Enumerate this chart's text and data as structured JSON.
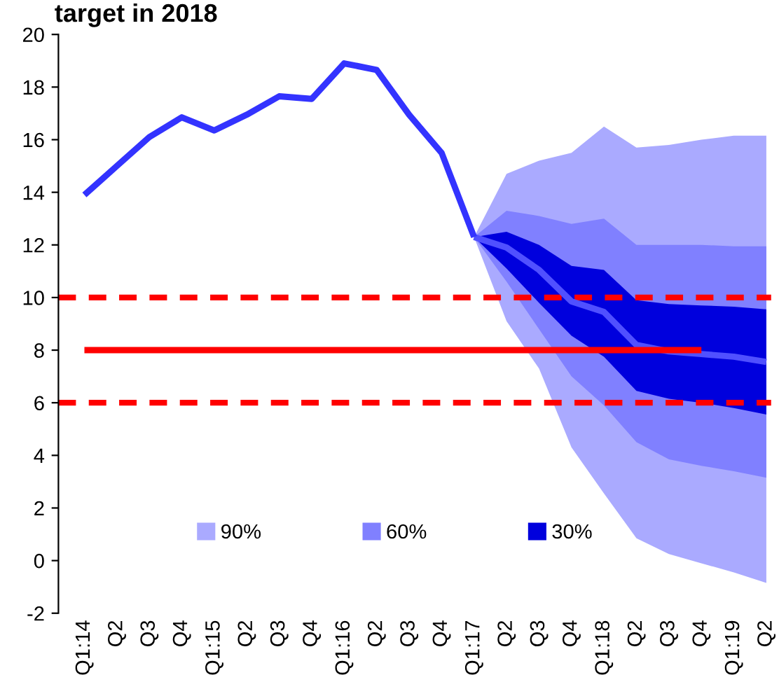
{
  "chart_data": {
    "type": "line",
    "title": "target in 2018",
    "categories": [
      "Q1:14",
      "Q2",
      "Q3",
      "Q4",
      "Q1:15",
      "Q2",
      "Q3",
      "Q4",
      "Q1:16",
      "Q2",
      "Q3",
      "Q4",
      "Q1:17",
      "Q2",
      "Q3",
      "Q4",
      "Q1:18",
      "Q2",
      "Q3",
      "Q4",
      "Q1:19",
      "Q2"
    ],
    "series": [
      {
        "name": "90%",
        "color": "#aaaaff",
        "values": [
          null,
          null,
          null,
          null,
          null,
          null,
          null,
          null,
          null,
          null,
          null,
          null,
          null,
          null,
          null,
          null,
          null,
          null,
          null,
          null,
          null,
          null
        ],
        "upper": [
          null,
          null,
          null,
          null,
          null,
          null,
          null,
          null,
          null,
          null,
          null,
          null,
          12.3,
          14.7,
          15.2,
          15.5,
          16.5,
          15.7,
          15.8,
          16.0,
          16.15,
          16.15
        ],
        "lower": [
          null,
          null,
          null,
          null,
          null,
          null,
          null,
          null,
          null,
          null,
          null,
          null,
          12.3,
          9.1,
          7.3,
          4.3,
          2.55,
          0.85,
          0.25,
          -0.1,
          -0.45,
          -0.85
        ]
      },
      {
        "name": "60%",
        "color": "#8080ff",
        "values": [
          null,
          null,
          null,
          null,
          null,
          null,
          null,
          null,
          null,
          null,
          null,
          null,
          null,
          null,
          null,
          null,
          null,
          null,
          null,
          null,
          null,
          null
        ],
        "upper": [
          null,
          null,
          null,
          null,
          null,
          null,
          null,
          null,
          null,
          null,
          null,
          null,
          12.3,
          13.3,
          13.1,
          12.8,
          13.0,
          12.0,
          12.0,
          12.0,
          11.95,
          11.95
        ],
        "lower": [
          null,
          null,
          null,
          null,
          null,
          null,
          null,
          null,
          null,
          null,
          null,
          null,
          12.3,
          10.6,
          8.8,
          7.0,
          5.9,
          4.5,
          3.85,
          3.6,
          3.4,
          3.15
        ]
      },
      {
        "name": "30%",
        "color": "#0000dd",
        "values": [
          null,
          null,
          null,
          null,
          null,
          null,
          null,
          null,
          null,
          null,
          null,
          null,
          null,
          null,
          null,
          null,
          null,
          null,
          null,
          null,
          null,
          null
        ],
        "upper": [
          null,
          null,
          null,
          null,
          null,
          null,
          null,
          null,
          null,
          null,
          null,
          null,
          12.3,
          12.5,
          12.0,
          11.2,
          11.05,
          9.9,
          9.75,
          9.7,
          9.65,
          9.55
        ],
        "lower": [
          null,
          null,
          null,
          null,
          null,
          null,
          null,
          null,
          null,
          null,
          null,
          null,
          12.3,
          11.1,
          9.8,
          8.55,
          7.75,
          6.45,
          6.15,
          6.0,
          5.8,
          5.55
        ]
      },
      {
        "color": "#5050ff",
        "values": [
          null,
          null,
          null,
          null,
          null,
          null,
          null,
          null,
          null,
          null,
          null,
          null,
          12.3,
          11.9,
          11.05,
          9.85,
          9.45,
          8.2,
          7.95,
          7.85,
          7.75,
          7.55
        ]
      },
      {
        "color": "#ff0000",
        "values": [
          8,
          8,
          8,
          8,
          8,
          8,
          8,
          8,
          8,
          8,
          8,
          8,
          8,
          8,
          8,
          8,
          8,
          8,
          8,
          8,
          null,
          null
        ]
      },
      {
        "color": "#3333ff",
        "values": [
          13.9,
          15.0,
          16.1,
          16.85,
          16.35,
          16.95,
          17.65,
          17.55,
          18.9,
          18.65,
          16.95,
          15.5,
          12.3,
          null,
          null,
          null,
          null,
          null,
          null,
          null,
          null,
          null
        ]
      }
    ],
    "ref_lines": [
      {
        "axis": "y",
        "value": 10,
        "color": "#ff0000",
        "line_style": "dashed"
      },
      {
        "axis": "y",
        "value": 6,
        "color": "#ff0000",
        "line_style": "dashed"
      }
    ],
    "ylim": [
      -2,
      20
    ],
    "yticks": [
      -2,
      0,
      2,
      4,
      6,
      8,
      10,
      12,
      14,
      16,
      18,
      20
    ],
    "grid": false,
    "legend": "bottom",
    "line_style": "solid",
    "marker": "none"
  }
}
